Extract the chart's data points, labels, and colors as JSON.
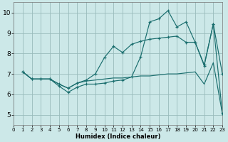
{
  "background_color": "#cce8e8",
  "grid_color": "#99bbbb",
  "line_color": "#1a6e6e",
  "xlim": [
    0,
    23
  ],
  "ylim": [
    4.5,
    10.5
  ],
  "xticks": [
    0,
    1,
    2,
    3,
    4,
    5,
    6,
    7,
    8,
    9,
    10,
    11,
    12,
    13,
    14,
    15,
    16,
    17,
    18,
    19,
    20,
    21,
    22,
    23
  ],
  "yticks": [
    5,
    6,
    7,
    8,
    9,
    10
  ],
  "xlabel": "Humidex (Indice chaleur)",
  "series": [
    {
      "name": "line_spiky",
      "x": [
        1,
        2,
        3,
        4,
        5,
        6,
        7,
        8,
        9,
        10,
        11,
        12,
        13,
        14,
        15,
        16,
        17,
        18,
        19,
        20,
        21,
        22,
        23
      ],
      "y": [
        7.1,
        6.75,
        6.75,
        6.75,
        6.4,
        6.1,
        6.35,
        6.5,
        6.5,
        6.55,
        6.65,
        6.7,
        6.85,
        7.85,
        9.55,
        9.7,
        10.1,
        9.3,
        9.55,
        8.55,
        7.45,
        9.45,
        7.0
      ],
      "marker": "+"
    },
    {
      "name": "line_upper",
      "x": [
        1,
        2,
        3,
        4,
        5,
        6,
        7,
        8,
        9,
        10,
        11,
        12,
        13,
        14,
        15,
        16,
        17,
        18,
        19,
        20,
        21,
        22,
        23
      ],
      "y": [
        7.1,
        6.75,
        6.75,
        6.75,
        6.5,
        6.3,
        6.55,
        6.7,
        7.0,
        7.8,
        8.35,
        8.05,
        8.45,
        8.6,
        8.7,
        8.75,
        8.8,
        8.85,
        8.55,
        8.55,
        7.4,
        9.45,
        5.05
      ],
      "marker": "+"
    },
    {
      "name": "line_lower",
      "x": [
        1,
        2,
        3,
        4,
        5,
        6,
        7,
        8,
        9,
        10,
        11,
        12,
        13,
        14,
        15,
        16,
        17,
        18,
        19,
        20,
        21,
        22,
        23
      ],
      "y": [
        7.1,
        6.75,
        6.75,
        6.75,
        6.5,
        6.3,
        6.55,
        6.65,
        6.7,
        6.75,
        6.8,
        6.8,
        6.85,
        6.9,
        6.9,
        6.95,
        7.0,
        7.0,
        7.05,
        7.1,
        6.5,
        7.55,
        5.05
      ],
      "marker": null
    }
  ],
  "figwidth": 3.2,
  "figheight": 2.0,
  "dpi": 100
}
